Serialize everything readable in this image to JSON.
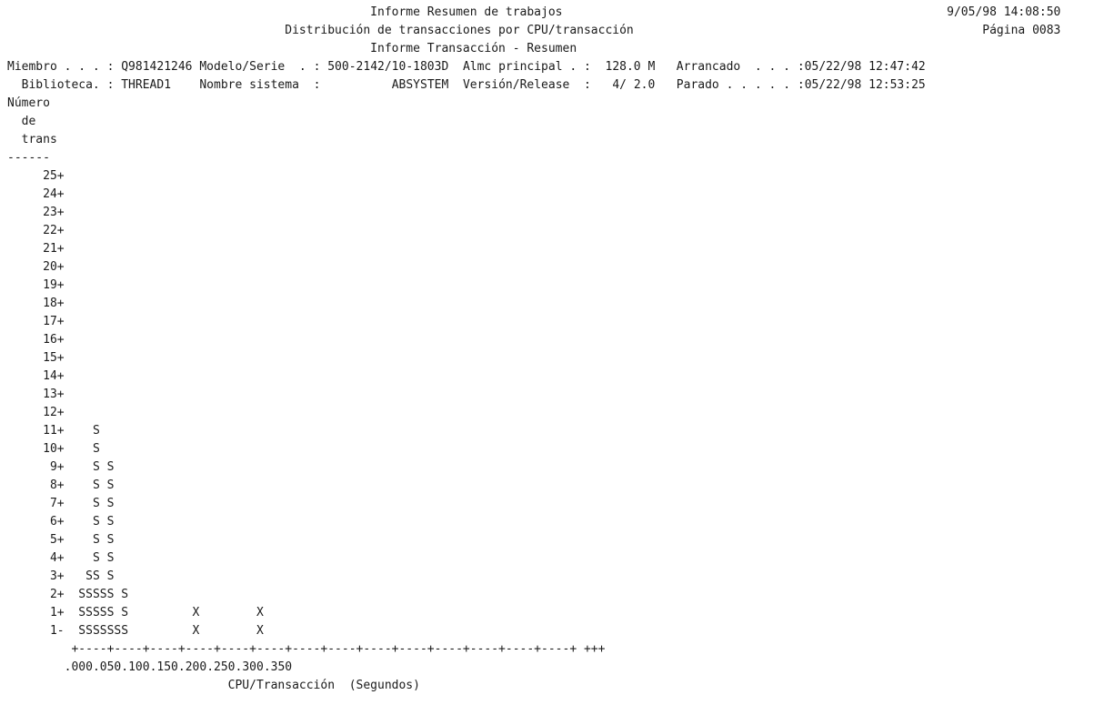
{
  "header": {
    "report_title": "Informe Resumen de trabajos",
    "report_datetime": "9/05/98 14:08:50",
    "subtitle": "Distribución de transacciones por CPU/transacción",
    "page_label": "Página 0083",
    "section_title": "Informe Transacción - Resumen"
  },
  "info": {
    "member_label": "Miembro . . . :",
    "member_value": "Q981421246",
    "model_label": "Modelo/Serie  . :",
    "model_value": "500-2142/10-1803D",
    "storage_label": "Almc principal . :",
    "storage_value": "128.0 M",
    "started_label": "Arrancado  . . . :",
    "started_value": "05/22/98 12:47:42",
    "library_label": "Biblioteca. :",
    "library_value": "THREAD1",
    "system_label": "Nombre sistema  :",
    "system_value": "ABSYSTEM",
    "release_label": "Versión/Release  :",
    "release_value": "4/ 2.0",
    "stopped_label": "Parado . . . . . :",
    "stopped_value": "05/22/98 12:53:25"
  },
  "chart_data": {
    "type": "scatter",
    "title": "Distribución de transacciones por CPU/transacción",
    "ylabel_lines": [
      "Número",
      "de",
      "trans",
      "------"
    ],
    "xlabel": "CPU/Transacción  (Segundos)",
    "y_ticks": [
      "25+",
      "24+",
      "23+",
      "22+",
      "21+",
      "20+",
      "19+",
      "18+",
      "17+",
      "16+",
      "15+",
      "14+",
      "13+",
      "12+",
      "11+",
      "10+",
      "9+",
      "8+",
      "7+",
      "6+",
      "5+",
      "4+",
      "3+",
      "2+",
      "1+",
      "1-"
    ],
    "x_axis_line": "+----+----+----+----+----+----+----+----+----+----+----+----+----+----+ +++",
    "x_tick_labels": [
      ".000",
      ".050",
      ".100",
      ".150",
      ".200",
      ".250",
      ".300",
      ".350"
    ],
    "x_step": 0.0125,
    "xlim": [
      0,
      0.35
    ],
    "ylim": [
      1,
      25
    ],
    "series": [
      {
        "symbol": "S",
        "points": [
          {
            "x": 0.0125,
            "y": 1
          },
          {
            "x": 0.025,
            "y": 1
          },
          {
            "x": 0.0375,
            "y": 1
          },
          {
            "x": 0.05,
            "y": 1
          },
          {
            "x": 0.0625,
            "y": 1
          },
          {
            "x": 0.075,
            "y": 1
          },
          {
            "x": 0.0875,
            "y": 1
          },
          {
            "x": 0.0125,
            "y": 3
          },
          {
            "x": 0.025,
            "y": 4
          },
          {
            "x": 0.0375,
            "y": 12
          },
          {
            "x": 0.05,
            "y": 3
          },
          {
            "x": 0.0625,
            "y": 10
          },
          {
            "x": 0.075,
            "y": 1
          },
          {
            "x": 0.0875,
            "y": 3
          }
        ]
      },
      {
        "symbol": "X",
        "points": [
          {
            "x": 0.2125,
            "y": 2
          },
          {
            "x": 0.325,
            "y": 2
          }
        ]
      }
    ]
  }
}
